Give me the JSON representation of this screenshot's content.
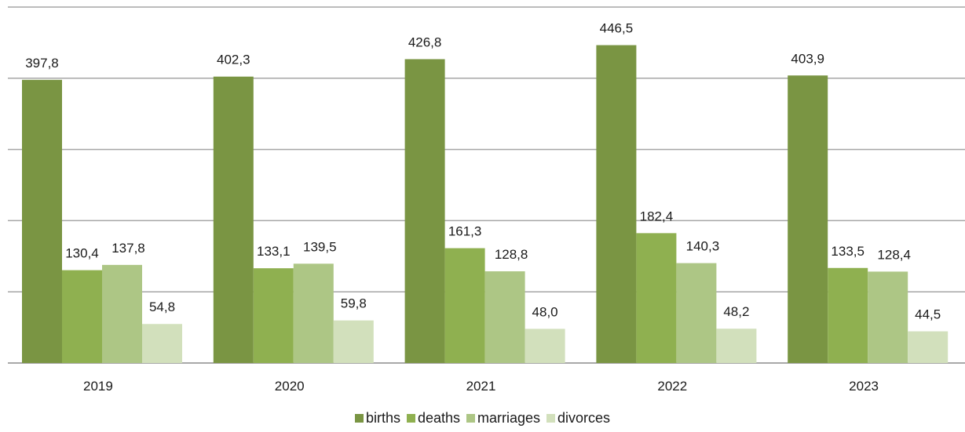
{
  "chart_data": {
    "type": "bar",
    "categories": [
      "2019",
      "2020",
      "2021",
      "2022",
      "2023"
    ],
    "series": [
      {
        "name": "births",
        "color": "#7a9543",
        "values": [
          397.8,
          402.3,
          426.8,
          446.5,
          403.9
        ]
      },
      {
        "name": "deaths",
        "color": "#8fb050",
        "values": [
          130.4,
          133.1,
          161.3,
          182.4,
          133.5
        ]
      },
      {
        "name": "marriages",
        "color": "#adc685",
        "values": [
          137.8,
          139.5,
          128.8,
          140.3,
          128.4
        ]
      },
      {
        "name": "divorces",
        "color": "#d2e0bc",
        "values": [
          54.8,
          59.8,
          48.0,
          48.2,
          44.5
        ]
      }
    ],
    "value_labels": [
      [
        "397,8",
        "130,4",
        "137,8",
        "54,8"
      ],
      [
        "402,3",
        "133,1",
        "139,5",
        "59,8"
      ],
      [
        "426,8",
        "161,3",
        "128,8",
        "48,0"
      ],
      [
        "446,5",
        "182,4",
        "140,3",
        "48,2"
      ],
      [
        "403,9",
        "133,5",
        "128,4",
        "44,5"
      ]
    ],
    "ylim": [
      0,
      500
    ],
    "y_gridlines": [
      0,
      100,
      200,
      300,
      400,
      500
    ],
    "grid": true,
    "y_tick_labels_shown": false,
    "legend_position": "bottom-center"
  }
}
